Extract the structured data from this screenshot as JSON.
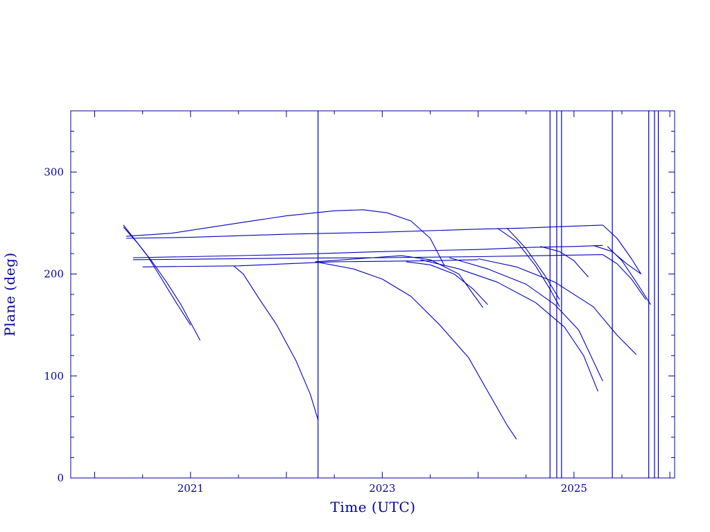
{
  "chart_data": {
    "type": "line",
    "title": "",
    "xlabel": "Time (UTC)",
    "ylabel": "Plane (deg)",
    "xlim": [
      2019.75,
      2026.05
    ],
    "ylim": [
      0,
      360
    ],
    "xticks": [
      2021,
      2023,
      2025
    ],
    "xtick_labels": [
      "2021",
      "2023",
      "2025"
    ],
    "yticks": [
      0,
      100,
      200,
      300
    ],
    "ytick_labels": [
      "0",
      "100",
      "200",
      "300"
    ],
    "grid": false,
    "legend": "none",
    "colors": {
      "line": "#0000c0",
      "axis": "#0000a0",
      "text": "#0000a0"
    },
    "series": [
      {
        "points": [
          [
            2020.3,
            248
          ],
          [
            2020.4,
            236
          ],
          [
            2020.55,
            218
          ],
          [
            2020.7,
            195
          ],
          [
            2020.85,
            172
          ],
          [
            2021.0,
            150
          ]
        ]
      },
      {
        "points": [
          [
            2020.3,
            246
          ],
          [
            2020.45,
            230
          ],
          [
            2020.6,
            212
          ],
          [
            2020.75,
            192
          ],
          [
            2020.9,
            170
          ],
          [
            2021.1,
            135
          ]
        ]
      },
      {
        "points": [
          [
            2020.33,
            237
          ],
          [
            2020.8,
            240
          ],
          [
            2021.5,
            250
          ],
          [
            2022.0,
            257
          ],
          [
            2022.5,
            262
          ],
          [
            2022.8,
            263
          ],
          [
            2023.05,
            260
          ],
          [
            2023.3,
            252
          ],
          [
            2023.5,
            235
          ],
          [
            2023.65,
            208
          ]
        ]
      },
      {
        "points": [
          [
            2020.33,
            235
          ],
          [
            2021.0,
            236
          ],
          [
            2022.0,
            239
          ],
          [
            2023.0,
            241
          ],
          [
            2024.0,
            244
          ],
          [
            2024.45,
            245
          ],
          [
            2025.0,
            247
          ],
          [
            2025.3,
            248
          ]
        ]
      },
      {
        "points": [
          [
            2020.4,
            216
          ],
          [
            2021.0,
            217
          ],
          [
            2022.0,
            219
          ],
          [
            2023.0,
            222
          ],
          [
            2024.0,
            224
          ],
          [
            2024.5,
            226
          ],
          [
            2025.0,
            227
          ],
          [
            2025.3,
            228
          ]
        ]
      },
      {
        "points": [
          [
            2020.4,
            214
          ],
          [
            2021.0,
            214.5
          ],
          [
            2022.0,
            215.5
          ],
          [
            2023.0,
            216
          ],
          [
            2024.0,
            217
          ],
          [
            2025.3,
            219
          ]
        ]
      },
      {
        "points": [
          [
            2020.5,
            207
          ],
          [
            2021.0,
            207.5
          ],
          [
            2021.5,
            208
          ],
          [
            2022.0,
            210
          ],
          [
            2022.5,
            212
          ],
          [
            2023.0,
            212.5
          ],
          [
            2023.5,
            213
          ],
          [
            2024.0,
            214
          ]
        ]
      },
      {
        "points": [
          [
            2021.45,
            208
          ],
          [
            2021.55,
            200
          ],
          [
            2021.7,
            178
          ],
          [
            2021.9,
            150
          ],
          [
            2022.1,
            115
          ],
          [
            2022.25,
            82
          ],
          [
            2022.33,
            57
          ]
        ]
      },
      {
        "points": [
          [
            2022.3,
            212
          ],
          [
            2022.7,
            205
          ],
          [
            2023.0,
            195
          ],
          [
            2023.3,
            178
          ],
          [
            2023.6,
            150
          ],
          [
            2023.9,
            118
          ],
          [
            2024.1,
            85
          ],
          [
            2024.3,
            52
          ],
          [
            2024.4,
            38
          ]
        ]
      },
      {
        "points": [
          [
            2022.3,
            212
          ],
          [
            2022.9,
            216
          ],
          [
            2023.2,
            218
          ],
          [
            2023.5,
            214
          ],
          [
            2023.8,
            200
          ],
          [
            2023.95,
            180
          ],
          [
            2024.05,
            167
          ]
        ]
      },
      {
        "points": [
          [
            2023.25,
            212
          ],
          [
            2023.5,
            209
          ],
          [
            2023.75,
            200
          ],
          [
            2023.95,
            185
          ],
          [
            2024.1,
            170
          ]
        ]
      },
      {
        "points": [
          [
            2023.4,
            214
          ],
          [
            2023.8,
            205
          ],
          [
            2024.2,
            192
          ],
          [
            2024.6,
            172
          ],
          [
            2024.9,
            148
          ],
          [
            2025.1,
            120
          ],
          [
            2025.25,
            85
          ]
        ]
      },
      {
        "points": [
          [
            2023.7,
            216
          ],
          [
            2024.1,
            205
          ],
          [
            2024.5,
            190
          ],
          [
            2024.8,
            170
          ],
          [
            2025.05,
            145
          ],
          [
            2025.2,
            115
          ],
          [
            2025.3,
            95
          ]
        ]
      },
      {
        "points": [
          [
            2024.0,
            215
          ],
          [
            2024.4,
            207
          ],
          [
            2024.8,
            192
          ],
          [
            2025.2,
            168
          ],
          [
            2025.45,
            140
          ],
          [
            2025.65,
            121
          ]
        ]
      },
      {
        "points": [
          [
            2024.2,
            245
          ],
          [
            2024.4,
            232
          ],
          [
            2024.6,
            208
          ],
          [
            2024.75,
            185
          ],
          [
            2024.85,
            168
          ]
        ]
      },
      {
        "points": [
          [
            2024.3,
            245
          ],
          [
            2024.5,
            225
          ],
          [
            2024.7,
            198
          ],
          [
            2024.85,
            175
          ]
        ]
      },
      {
        "points": [
          [
            2024.65,
            227
          ],
          [
            2024.85,
            222
          ],
          [
            2025.0,
            213
          ],
          [
            2025.15,
            197
          ]
        ]
      },
      {
        "points": [
          [
            2025.2,
            228
          ],
          [
            2025.4,
            222
          ],
          [
            2025.55,
            210
          ],
          [
            2025.7,
            200
          ]
        ]
      },
      {
        "points": [
          [
            2025.3,
            248
          ],
          [
            2025.45,
            235
          ],
          [
            2025.6,
            215
          ],
          [
            2025.7,
            200
          ]
        ]
      },
      {
        "points": [
          [
            2025.3,
            219
          ],
          [
            2025.45,
            210
          ],
          [
            2025.6,
            195
          ],
          [
            2025.75,
            175
          ]
        ]
      },
      {
        "points": [
          [
            2025.35,
            227
          ],
          [
            2025.5,
            213
          ],
          [
            2025.65,
            192
          ],
          [
            2025.8,
            170
          ]
        ]
      }
    ],
    "vertical_lines": [
      2022.33,
      2024.75,
      2024.82,
      2024.87,
      2025.4,
      2025.78,
      2025.84,
      2025.88
    ]
  }
}
